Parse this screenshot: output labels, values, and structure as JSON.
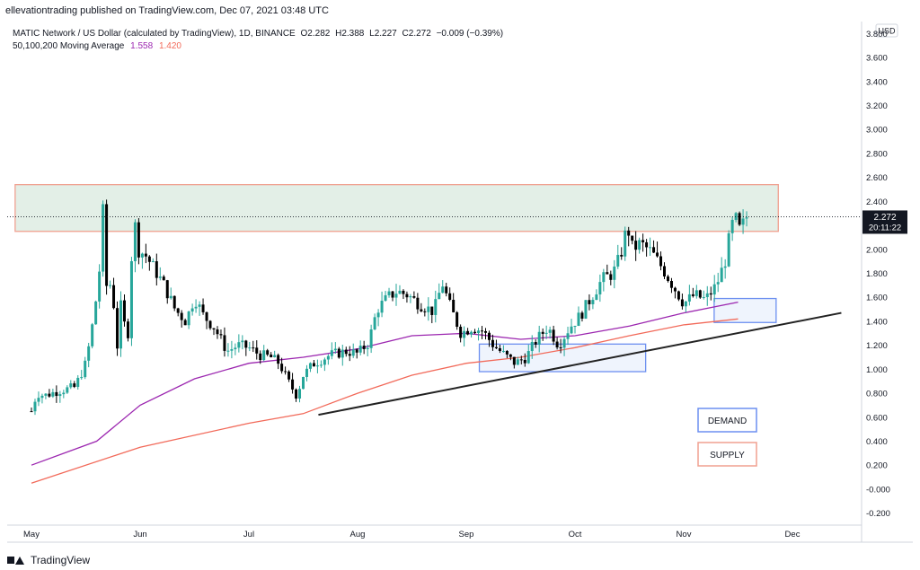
{
  "header": {
    "published": "ellevationtrading published on TradingView.com, Dec 07, 2021 03:48 UTC"
  },
  "legend": {
    "symbol_line": "MATIC Network / US Dollar (calculated by TradingView), 1D, BINANCE",
    "ohlc": {
      "o_label": "O",
      "o": "2.282",
      "h_label": "H",
      "h": "2.388",
      "l_label": "L",
      "l": "2.227",
      "c_label": "C",
      "c": "2.272",
      "change": "−0.009 (−0.39%)"
    },
    "ma_line": "50,100,200 Moving Average",
    "ma_values": [
      "1.558",
      "1.420"
    ]
  },
  "price_scale": {
    "currency": "USD",
    "last_price": "2.272",
    "countdown": "20:11:22"
  },
  "annotations": {
    "demand_label": "DEMAND",
    "supply_label": "SUPPLY"
  },
  "footer": {
    "brand": "TradingView"
  },
  "colors": {
    "up": "#26a69a",
    "down": "#000000",
    "ma100": "#9c27b0",
    "ma200": "#f26a5a",
    "supply_zone_fill": "#d9eadf",
    "supply_zone_border": "#f0a090",
    "demand_border": "#6c8ff0",
    "trendline": "#222222",
    "last_price_bg": "#131722"
  },
  "chart_data": {
    "type": "candlestick",
    "ylim": [
      -0.3,
      3.9
    ],
    "y_ticks": [
      "3.800",
      "3.600",
      "3.400",
      "3.200",
      "3.000",
      "2.800",
      "2.600",
      "2.400",
      "2.200",
      "2.000",
      "1.800",
      "1.600",
      "1.400",
      "1.200",
      "1.000",
      "0.800",
      "0.600",
      "0.400",
      "0.200",
      "-0.000",
      "-0.200"
    ],
    "x_ticks": [
      "May",
      "Jun",
      "Jul",
      "Aug",
      "Sep",
      "Oct",
      "Nov",
      "Dec"
    ],
    "x_tick_months": [
      0,
      1,
      2,
      3,
      4,
      5,
      6,
      7
    ],
    "time_range_months": [
      0,
      7.6
    ],
    "price_path": [
      [
        0.0,
        0.65
      ],
      [
        0.05,
        0.8
      ],
      [
        0.12,
        0.78
      ],
      [
        0.25,
        0.82
      ],
      [
        0.4,
        0.85
      ],
      [
        0.5,
        1.05
      ],
      [
        0.55,
        1.3
      ],
      [
        0.62,
        1.75
      ],
      [
        0.66,
        2.35
      ],
      [
        0.7,
        1.5
      ],
      [
        0.74,
        1.85
      ],
      [
        0.78,
        1.1
      ],
      [
        0.83,
        1.6
      ],
      [
        0.88,
        1.15
      ],
      [
        0.94,
        2.3
      ],
      [
        0.98,
        2.0
      ],
      [
        1.05,
        1.95
      ],
      [
        1.12,
        1.85
      ],
      [
        1.22,
        1.7
      ],
      [
        1.32,
        1.5
      ],
      [
        1.42,
        1.4
      ],
      [
        1.5,
        1.6
      ],
      [
        1.58,
        1.45
      ],
      [
        1.68,
        1.35
      ],
      [
        1.8,
        1.15
      ],
      [
        1.9,
        1.2
      ],
      [
        2.0,
        1.18
      ],
      [
        2.1,
        1.12
      ],
      [
        2.2,
        1.1
      ],
      [
        2.28,
        1.05
      ],
      [
        2.36,
        0.9
      ],
      [
        2.44,
        0.78
      ],
      [
        2.5,
        0.95
      ],
      [
        2.6,
        1.05
      ],
      [
        2.75,
        1.12
      ],
      [
        2.9,
        1.15
      ],
      [
        3.0,
        1.13
      ],
      [
        3.1,
        1.22
      ],
      [
        3.18,
        1.5
      ],
      [
        3.28,
        1.6
      ],
      [
        3.36,
        1.65
      ],
      [
        3.46,
        1.62
      ],
      [
        3.56,
        1.55
      ],
      [
        3.7,
        1.48
      ],
      [
        3.78,
        1.72
      ],
      [
        3.84,
        1.55
      ],
      [
        3.95,
        1.3
      ],
      [
        4.05,
        1.35
      ],
      [
        4.15,
        1.32
      ],
      [
        4.25,
        1.2
      ],
      [
        4.35,
        1.12
      ],
      [
        4.45,
        1.05
      ],
      [
        4.55,
        1.1
      ],
      [
        4.65,
        1.25
      ],
      [
        4.75,
        1.35
      ],
      [
        4.85,
        1.2
      ],
      [
        4.95,
        1.35
      ],
      [
        5.05,
        1.45
      ],
      [
        5.15,
        1.6
      ],
      [
        5.25,
        1.75
      ],
      [
        5.35,
        1.8
      ],
      [
        5.42,
        1.95
      ],
      [
        5.48,
        2.2
      ],
      [
        5.53,
        2.0
      ],
      [
        5.6,
        2.05
      ],
      [
        5.7,
        1.98
      ],
      [
        5.8,
        1.85
      ],
      [
        5.9,
        1.7
      ],
      [
        6.0,
        1.55
      ],
      [
        6.1,
        1.62
      ],
      [
        6.2,
        1.58
      ],
      [
        6.3,
        1.7
      ],
      [
        6.38,
        1.9
      ],
      [
        6.44,
        2.2
      ],
      [
        6.48,
        2.25
      ],
      [
        6.52,
        2.15
      ],
      [
        6.57,
        2.27
      ]
    ],
    "series": [
      {
        "name": "MA 100",
        "values": [
          [
            0.0,
            0.2
          ],
          [
            0.6,
            0.4
          ],
          [
            1.0,
            0.7
          ],
          [
            1.5,
            0.92
          ],
          [
            2.0,
            1.05
          ],
          [
            2.5,
            1.1
          ],
          [
            3.0,
            1.17
          ],
          [
            3.5,
            1.28
          ],
          [
            4.0,
            1.3
          ],
          [
            4.5,
            1.25
          ],
          [
            5.0,
            1.28
          ],
          [
            5.5,
            1.36
          ],
          [
            6.0,
            1.47
          ],
          [
            6.5,
            1.56
          ]
        ]
      },
      {
        "name": "MA 200",
        "values": [
          [
            0.0,
            0.05
          ],
          [
            1.0,
            0.35
          ],
          [
            2.0,
            0.55
          ],
          [
            2.5,
            0.63
          ],
          [
            3.0,
            0.8
          ],
          [
            3.5,
            0.95
          ],
          [
            4.0,
            1.05
          ],
          [
            4.5,
            1.1
          ],
          [
            5.0,
            1.18
          ],
          [
            5.5,
            1.28
          ],
          [
            6.0,
            1.37
          ],
          [
            6.5,
            1.42
          ]
        ]
      }
    ],
    "supply_zone": {
      "t0": -0.15,
      "t1": 6.87,
      "y0": 2.15,
      "y1": 2.54
    },
    "demand_zones": [
      {
        "t0": 4.12,
        "t1": 5.65,
        "y0": 0.98,
        "y1": 1.21
      },
      {
        "t0": 6.28,
        "t1": 6.85,
        "y0": 1.39,
        "y1": 1.59
      }
    ],
    "trendline": {
      "t0": 2.64,
      "y0": 0.62,
      "t1": 7.45,
      "y1": 1.47
    },
    "last_price": 2.272
  }
}
